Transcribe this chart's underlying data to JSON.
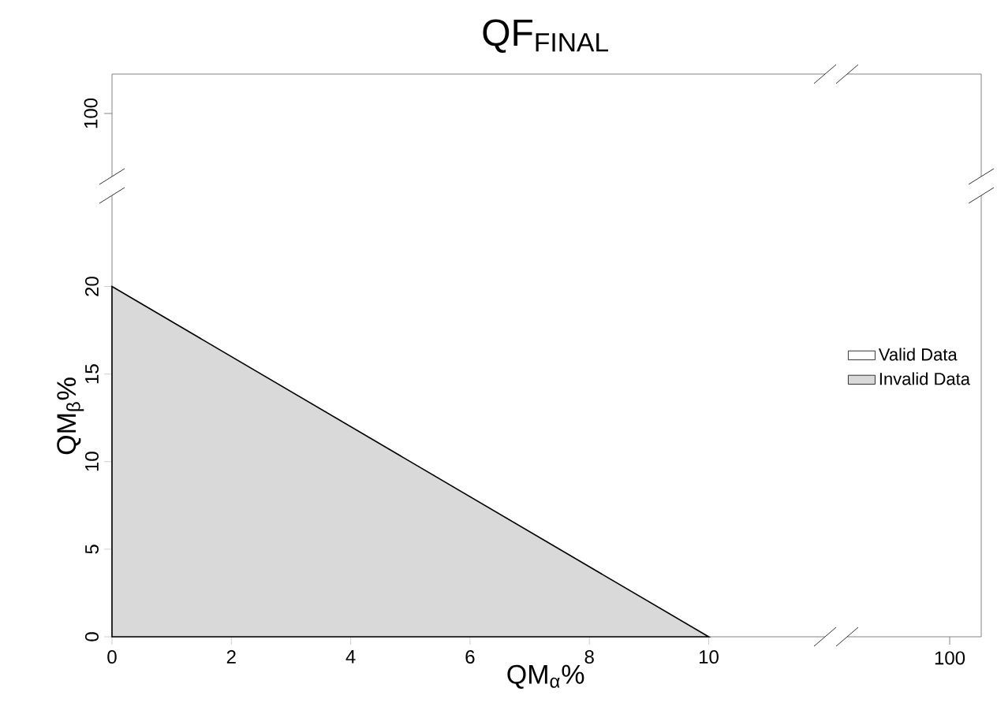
{
  "chart_data": {
    "type": "area",
    "title": "QF$_{FINAL}$",
    "xlabel": "QM$_{α}$%",
    "ylabel": "QM$_{β}$%",
    "x": [
      0,
      10
    ],
    "series": [
      {
        "name": "Valid Data",
        "color": "#ffffff",
        "values": [
          null,
          null
        ]
      },
      {
        "name": "Invalid Data",
        "color": "#d9d9d9",
        "values": [
          20,
          0
        ]
      }
    ],
    "xlim": [
      0,
      11.95
    ],
    "ylim": [
      0,
      25.2
    ],
    "xticks": [
      0,
      2,
      4,
      6,
      8,
      10
    ],
    "yticks": [
      0,
      5,
      10,
      15,
      20
    ],
    "legend": "right",
    "annotations": [
      "100",
      "100"
    ]
  }
}
